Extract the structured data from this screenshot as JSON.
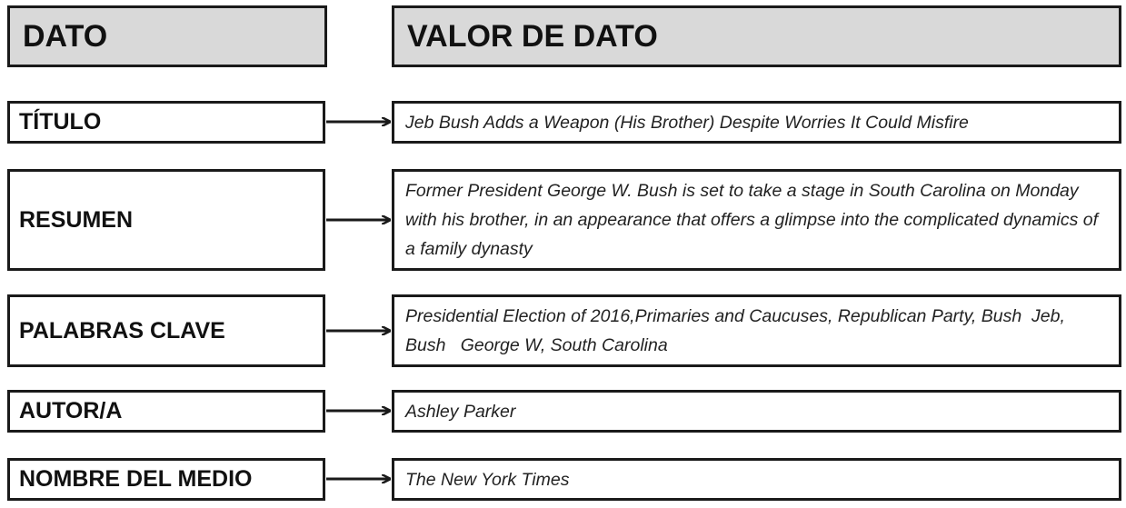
{
  "header": {
    "left": "DATO",
    "right": "VALOR DE DATO"
  },
  "rows": [
    {
      "label": "TÍTULO",
      "value": "Jeb Bush Adds a Weapon (His Brother) Despite Worries It Could Misfire"
    },
    {
      "label": "RESUMEN",
      "value": "Former President George W. Bush is set to take a stage in South Carolina on Monday with his brother, in an appearance that offers a glimpse into the complicated dynamics of a family dynasty"
    },
    {
      "label": "PALABRAS CLAVE",
      "value": "Presidential Election of 2016,Primaries and Caucuses, Republican Party, Bush  Jeb, Bush   George W, South Carolina"
    },
    {
      "label": "AUTOR/A",
      "value": "Ashley Parker"
    },
    {
      "label": "NOMBRE DEL MEDIO",
      "value": "The New York Times"
    }
  ]
}
